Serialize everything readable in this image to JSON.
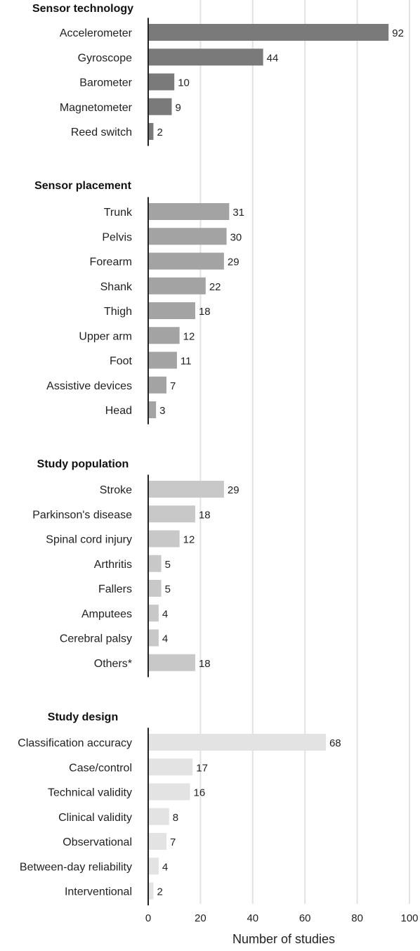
{
  "chart_data": {
    "type": "bar",
    "orientation": "horizontal",
    "xlabel": "Number of studies",
    "xlim": [
      0,
      100
    ],
    "xticks": [
      0,
      20,
      40,
      60,
      80,
      100
    ],
    "grid": "vertical lines",
    "panels": [
      {
        "title": "Sensor technology",
        "color": "#7a7a7a",
        "categories": [
          "Accelerometer",
          "Gyroscope",
          "Barometer",
          "Magnetometer",
          "Reed switch"
        ],
        "values": [
          92,
          44,
          10,
          9,
          2
        ]
      },
      {
        "title": "Sensor placement",
        "color": "#a3a3a3",
        "categories": [
          "Trunk",
          "Pelvis",
          "Forearm",
          "Shank",
          "Thigh",
          "Upper arm",
          "Foot",
          "Assistive devices",
          "Head"
        ],
        "values": [
          31,
          30,
          29,
          22,
          18,
          12,
          11,
          7,
          3
        ]
      },
      {
        "title": "Study population",
        "color": "#c8c8c8",
        "categories": [
          "Stroke",
          "Parkinson's disease",
          "Spinal cord injury",
          "Arthritis",
          "Fallers",
          "Amputees",
          "Cerebral palsy",
          "Others*"
        ],
        "values": [
          29,
          18,
          12,
          5,
          5,
          4,
          4,
          18
        ]
      },
      {
        "title": "Study design",
        "color": "#e3e3e3",
        "categories": [
          "Classification accuracy",
          "Case/control",
          "Technical validity",
          "Clinical validity",
          "Observational",
          "Between-day reliability",
          "Interventional"
        ],
        "values": [
          68,
          17,
          16,
          8,
          7,
          4,
          2
        ]
      }
    ]
  }
}
